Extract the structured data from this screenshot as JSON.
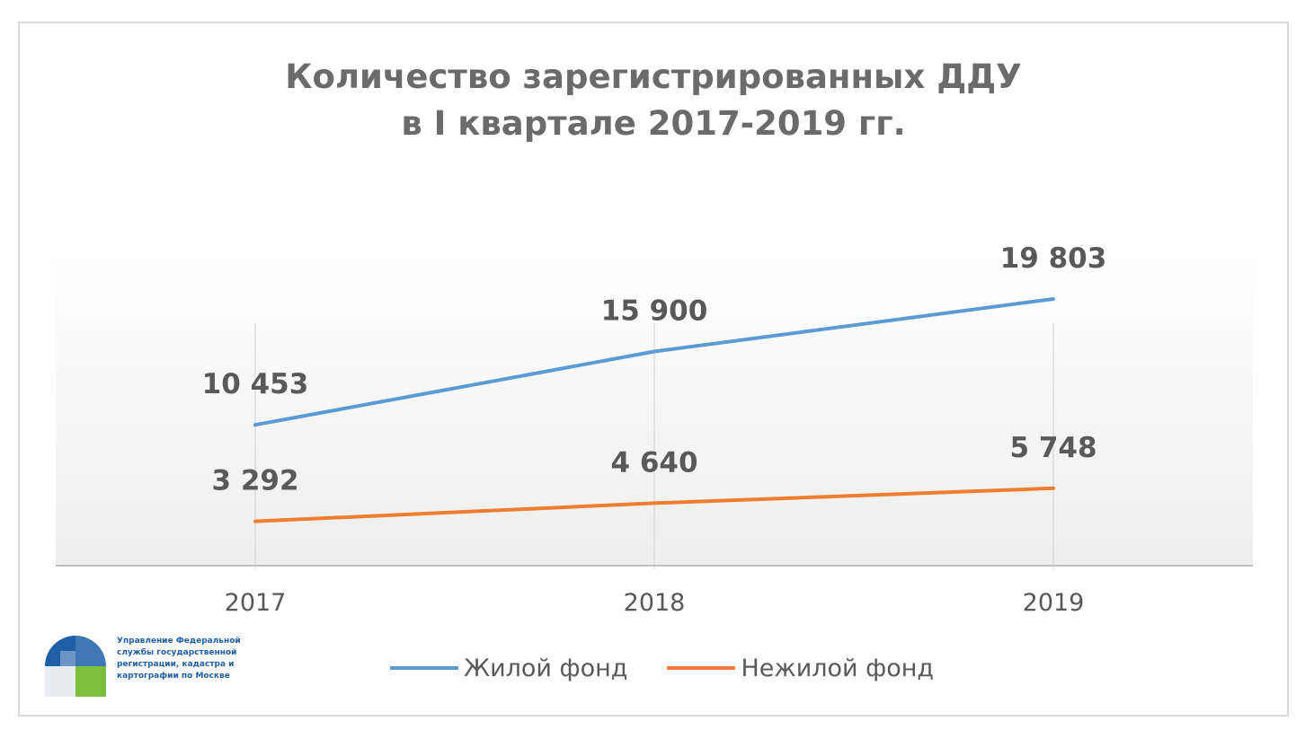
{
  "chart_data": {
    "type": "line",
    "title_lines": [
      "Количество зарегистрированных ДДУ",
      "в I квартале 2017-2019 гг."
    ],
    "xlabel": "",
    "ylabel": "",
    "categories": [
      "2017",
      "2018",
      "2019"
    ],
    "ylim": [
      0,
      22000
    ],
    "grid": "vertical",
    "legend_position": "bottom",
    "series": [
      {
        "name": "Жилой фонд",
        "color": "#5b9bd5",
        "values": [
          10453,
          15900,
          19803
        ],
        "labels": [
          "10 453",
          "15 900",
          "19 803"
        ]
      },
      {
        "name": "Нежилой фонд",
        "color": "#ed7d31",
        "values": [
          3292,
          4640,
          5748
        ],
        "labels": [
          "3 292",
          "4 640",
          "5 748"
        ]
      }
    ]
  },
  "logo": {
    "icon": "rosreestr-logo-icon",
    "text_lines": [
      "Управление Федеральной",
      "службы государственной",
      "регистрации, кадастра и",
      "картографии по Москве"
    ]
  }
}
